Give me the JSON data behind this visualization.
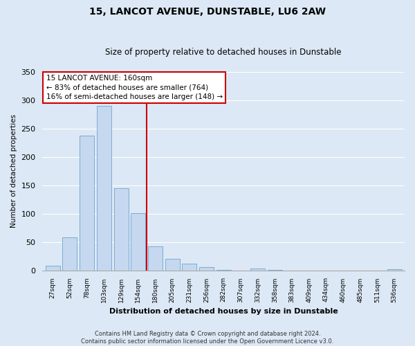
{
  "title": "15, LANCOT AVENUE, DUNSTABLE, LU6 2AW",
  "subtitle": "Size of property relative to detached houses in Dunstable",
  "xlabel": "Distribution of detached houses by size in Dunstable",
  "ylabel": "Number of detached properties",
  "bar_labels": [
    "27sqm",
    "52sqm",
    "78sqm",
    "103sqm",
    "129sqm",
    "154sqm",
    "180sqm",
    "205sqm",
    "231sqm",
    "256sqm",
    "282sqm",
    "307sqm",
    "332sqm",
    "358sqm",
    "383sqm",
    "409sqm",
    "434sqm",
    "460sqm",
    "485sqm",
    "511sqm",
    "536sqm"
  ],
  "bar_values": [
    8,
    58,
    238,
    290,
    145,
    101,
    42,
    20,
    12,
    5,
    1,
    0,
    3,
    1,
    0,
    0,
    0,
    0,
    0,
    0,
    2
  ],
  "bar_facecolor": "#c5d8f0",
  "bar_edgecolor": "#7bacd4",
  "reference_line_color": "#cc0000",
  "annotation_title": "15 LANCOT AVENUE: 160sqm",
  "annotation_line1": "← 83% of detached houses are smaller (764)",
  "annotation_line2": "16% of semi-detached houses are larger (148) →",
  "annotation_box_facecolor": "#ffffff",
  "annotation_box_edgecolor": "#cc0000",
  "footer1": "Contains HM Land Registry data © Crown copyright and database right 2024.",
  "footer2": "Contains public sector information licensed under the Open Government Licence v3.0.",
  "ylim": [
    0,
    350
  ],
  "background_color": "#dce8f5",
  "grid_color": "#ffffff",
  "title_fontsize": 10,
  "subtitle_fontsize": 8.5
}
